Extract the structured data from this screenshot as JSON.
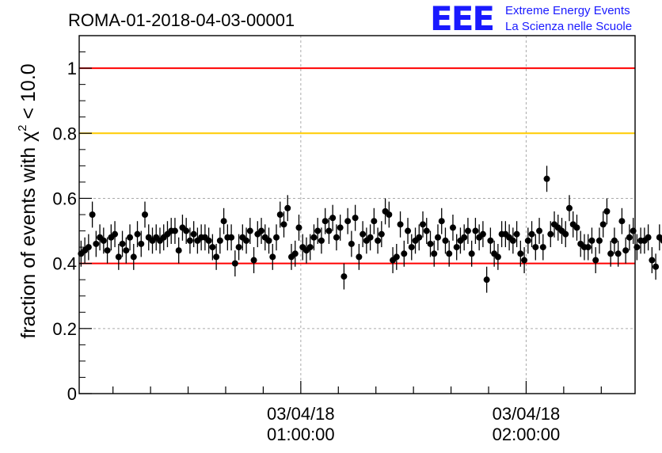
{
  "chart_data": {
    "type": "scatter",
    "title": "ROMA-01-2018-04-03-00001",
    "ylabel_prefix": "fraction of events with χ",
    "ylabel_sup": "2",
    "ylabel_suffix": " < 10.0",
    "ylim": [
      0,
      1.1
    ],
    "y_ticks": [
      0,
      0.2,
      0.4,
      0.6,
      0.8,
      1
    ],
    "y_tick_labels": [
      "0",
      "0.2",
      "0.4",
      "0.6",
      "0.8",
      "1"
    ],
    "x_unit": "minutes",
    "xlim": [
      -59,
      89
    ],
    "x_ticks": [
      0,
      60
    ],
    "x_tick_labels": [
      [
        "03/04/18",
        "01:00:00"
      ],
      [
        "03/04/18",
        "02:00:00"
      ]
    ],
    "grid": true,
    "reference_lines": [
      {
        "y": 1.0,
        "color": "#ff0000"
      },
      {
        "y": 0.8,
        "color": "#ffcc00"
      },
      {
        "y": 0.4,
        "color": "#ff0000"
      }
    ],
    "error": 0.04,
    "x_step": 1.0,
    "x_start": -58.5,
    "values": [
      0.43,
      0.44,
      0.45,
      0.55,
      0.46,
      0.48,
      0.47,
      0.44,
      0.48,
      0.49,
      0.42,
      0.46,
      0.44,
      0.48,
      0.42,
      0.49,
      0.46,
      0.55,
      0.48,
      0.47,
      0.48,
      0.47,
      0.48,
      0.49,
      0.5,
      0.5,
      0.44,
      0.51,
      0.5,
      0.47,
      0.49,
      0.47,
      0.48,
      0.48,
      0.47,
      0.45,
      0.42,
      0.47,
      0.53,
      0.48,
      0.48,
      0.4,
      0.45,
      0.48,
      0.47,
      0.5,
      0.41,
      0.49,
      0.5,
      0.48,
      0.47,
      0.42,
      0.48,
      0.55,
      0.52,
      0.57,
      0.42,
      0.43,
      0.51,
      0.45,
      0.44,
      0.45,
      0.48,
      0.5,
      0.47,
      0.53,
      0.5,
      0.54,
      0.48,
      0.51,
      0.36,
      0.53,
      0.46,
      0.54,
      0.42,
      0.49,
      0.47,
      0.48,
      0.53,
      0.47,
      0.49,
      0.56,
      0.55,
      0.41,
      0.42,
      0.52,
      0.43,
      0.5,
      0.45,
      0.47,
      0.48,
      0.52,
      0.5,
      0.46,
      0.43,
      0.48,
      0.53,
      0.47,
      0.43,
      0.51,
      0.45,
      0.47,
      0.48,
      0.5,
      0.43,
      0.5,
      0.48,
      0.49,
      0.35,
      0.47,
      0.43,
      0.42,
      0.49,
      0.49,
      0.48,
      0.47,
      0.49,
      0.43,
      0.41,
      0.47,
      0.49,
      0.45,
      0.5,
      0.45,
      0.66,
      0.49,
      0.52,
      0.51,
      0.5,
      0.49,
      0.57,
      0.52,
      0.51,
      0.46,
      0.45,
      0.45,
      0.47,
      0.41,
      0.47,
      0.52,
      0.56,
      0.43,
      0.47,
      0.43,
      0.53,
      0.44,
      0.48,
      0.5,
      0.45,
      0.47,
      0.47,
      0.48,
      0.41,
      0.39,
      0.48,
      0.47,
      0.56,
      0.47,
      0.5
    ]
  },
  "logo": {
    "mark": "EEE",
    "line1": "Extreme Energy Events",
    "line2": "La Scienza nelle Scuole"
  },
  "colors": {
    "marker": "#000000",
    "grid": "#aaaaaa"
  }
}
